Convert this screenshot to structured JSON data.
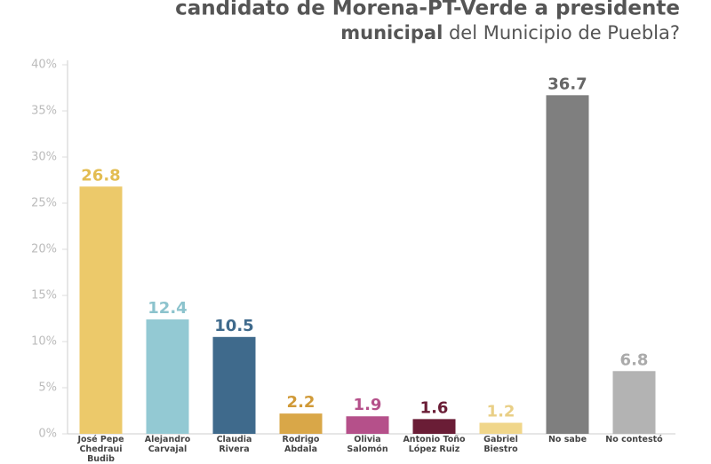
{
  "chart_data": {
    "type": "bar",
    "title_lines": [
      "candidato de Morena-PT-Verde a presidente",
      "municipal",
      "del Municipio de Puebla?"
    ],
    "categories": [
      "José Pepe Chedraui Budib",
      "Alejandro Carvajal",
      "Claudia Rivera",
      "Rodrigo Abdala",
      "Olivia Salomón",
      "Antonio Toño López Ruiz",
      "Gabriel Biestro",
      "No sabe",
      "No contestó"
    ],
    "values": [
      26.8,
      12.4,
      10.5,
      2.2,
      1.9,
      1.6,
      1.2,
      36.7,
      6.8
    ],
    "colors": [
      "#ecc96a",
      "#93c9d3",
      "#3f6a8c",
      "#d9a748",
      "#b5508a",
      "#6a1d36",
      "#f0d68a",
      "#7f7f7f",
      "#b3b3b3"
    ],
    "label_colors": [
      "#e3bd52",
      "#8cc3cd",
      "#3f6a8c",
      "#d09a38",
      "#b5508a",
      "#6a1d36",
      "#e9cf86",
      "#666666",
      "#aaaaaa"
    ],
    "ylim": [
      0,
      40
    ],
    "yticks": [
      {
        "value": 0,
        "label": "0%"
      },
      {
        "value": 5,
        "label": "5%"
      },
      {
        "value": 10,
        "label": "10%"
      },
      {
        "value": 15,
        "label": "15%"
      },
      {
        "value": 20,
        "label": "20%"
      },
      {
        "value": 25,
        "label": "25%"
      },
      {
        "value": 30,
        "label": "30%"
      },
      {
        "value": 35,
        "label": "35%"
      },
      {
        "value": 40,
        "label": "40%"
      }
    ]
  }
}
